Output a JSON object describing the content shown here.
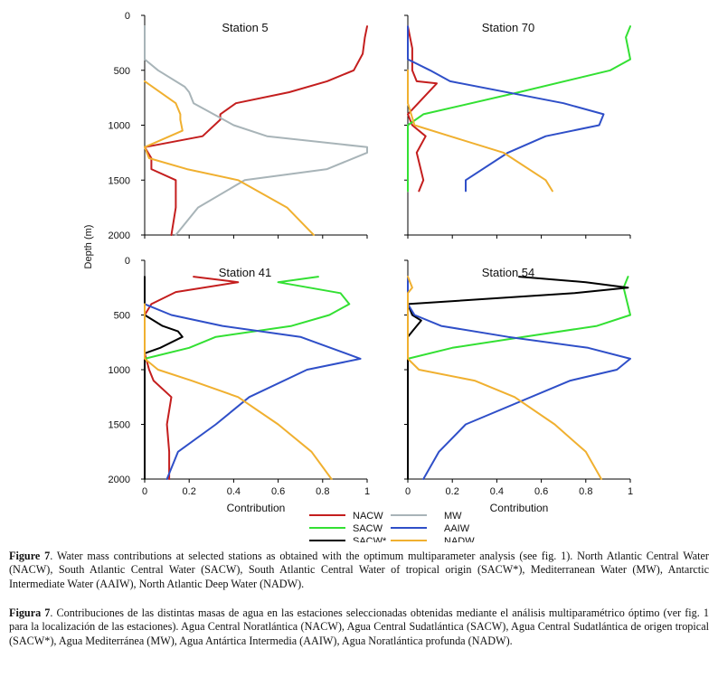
{
  "colors": {
    "NACW": "#c41e1e",
    "SACW": "#33e033",
    "SACW*": "#000000",
    "MW": "#a8b4b8",
    "AAIW": "#2f4fc8",
    "NADW": "#f0b030"
  },
  "axes": {
    "ylabel": "Depth (m)",
    "xlabel": "Contribution",
    "y_ticks": [
      "0",
      "500",
      "1000",
      "1500",
      "2000"
    ],
    "x_ticks_left": [
      "0",
      "0.2",
      "0.4",
      "0.6",
      "0.8",
      "1"
    ],
    "x_ticks_right": [
      "0",
      "0.2",
      "0.4",
      "0.6",
      "0.8",
      "1"
    ]
  },
  "legend": {
    "items": [
      {
        "key": "NACW",
        "label": "NACW"
      },
      {
        "key": "MW",
        "label": "MW"
      },
      {
        "key": "SACW",
        "label": "SACW"
      },
      {
        "key": "AAIW",
        "label": "AAIW"
      },
      {
        "key": "SACW*",
        "label": "SACW*"
      },
      {
        "key": "NADW",
        "label": "NADW"
      }
    ]
  },
  "chart_data": [
    {
      "type": "line",
      "title": "Station 5",
      "xlabel": "Contribution",
      "ylabel": "Depth (m)",
      "xlim": [
        0,
        1
      ],
      "ylim": [
        0,
        2000
      ],
      "y_inverted": true,
      "series": [
        {
          "name": "NACW",
          "points": [
            [
              1.0,
              100
            ],
            [
              0.99,
              200
            ],
            [
              0.98,
              350
            ],
            [
              0.94,
              500
            ],
            [
              0.82,
              600
            ],
            [
              0.65,
              700
            ],
            [
              0.41,
              800
            ],
            [
              0.34,
              900
            ],
            [
              0.34,
              950
            ],
            [
              0.26,
              1100
            ],
            [
              0.0,
              1200
            ],
            [
              0.03,
              1300
            ],
            [
              0.03,
              1400
            ],
            [
              0.14,
              1500
            ],
            [
              0.14,
              1750
            ],
            [
              0.12,
              2000
            ]
          ]
        },
        {
          "name": "MW",
          "points": [
            [
              0.0,
              100
            ],
            [
              0.0,
              400
            ],
            [
              0.06,
              500
            ],
            [
              0.18,
              650
            ],
            [
              0.2,
              700
            ],
            [
              0.22,
              800
            ],
            [
              0.4,
              1000
            ],
            [
              0.55,
              1100
            ],
            [
              1.0,
              1200
            ],
            [
              1.0,
              1250
            ],
            [
              0.82,
              1400
            ],
            [
              0.45,
              1500
            ],
            [
              0.24,
              1750
            ],
            [
              0.14,
              2000
            ]
          ]
        },
        {
          "name": "NADW",
          "points": [
            [
              0.0,
              600
            ],
            [
              0.14,
              800
            ],
            [
              0.16,
              900
            ],
            [
              0.16,
              950
            ],
            [
              0.17,
              1050
            ],
            [
              0.0,
              1200
            ],
            [
              0.02,
              1300
            ],
            [
              0.19,
              1400
            ],
            [
              0.42,
              1500
            ],
            [
              0.64,
              1750
            ],
            [
              0.76,
              2000
            ]
          ]
        }
      ]
    },
    {
      "type": "line",
      "title": "Station 70",
      "xlabel": "Contribution",
      "ylabel": "Depth (m)",
      "xlim": [
        0,
        1
      ],
      "ylim": [
        0,
        2000
      ],
      "y_inverted": true,
      "series": [
        {
          "name": "NACW",
          "points": [
            [
              0.0,
              100
            ],
            [
              0.02,
              300
            ],
            [
              0.02,
              500
            ],
            [
              0.04,
              600
            ],
            [
              0.13,
              620
            ],
            [
              0.07,
              750
            ],
            [
              0.0,
              900
            ],
            [
              0.02,
              1000
            ],
            [
              0.08,
              1100
            ],
            [
              0.04,
              1250
            ],
            [
              0.07,
              1500
            ],
            [
              0.05,
              1600
            ]
          ]
        },
        {
          "name": "SACW",
          "points": [
            [
              1.0,
              100
            ],
            [
              0.98,
              200
            ],
            [
              1.0,
              400
            ],
            [
              0.91,
              500
            ],
            [
              0.5,
              700
            ],
            [
              0.07,
              900
            ],
            [
              0.0,
              1000
            ],
            [
              0.0,
              1600
            ]
          ]
        },
        {
          "name": "AAIW",
          "points": [
            [
              0.0,
              100
            ],
            [
              0.0,
              400
            ],
            [
              0.1,
              500
            ],
            [
              0.19,
              600
            ],
            [
              0.7,
              800
            ],
            [
              0.88,
              900
            ],
            [
              0.86,
              1000
            ],
            [
              0.62,
              1100
            ],
            [
              0.45,
              1250
            ],
            [
              0.26,
              1500
            ],
            [
              0.26,
              1600
            ]
          ]
        },
        {
          "name": "NADW",
          "points": [
            [
              0.0,
              500
            ],
            [
              0.0,
              800
            ],
            [
              0.03,
              1000
            ],
            [
              0.19,
              1100
            ],
            [
              0.43,
              1250
            ],
            [
              0.62,
              1500
            ],
            [
              0.65,
              1600
            ]
          ]
        }
      ]
    },
    {
      "type": "line",
      "title": "Station 41",
      "xlabel": "Contribution",
      "ylabel": "Depth (m)",
      "xlim": [
        0,
        1
      ],
      "ylim": [
        0,
        2000
      ],
      "y_inverted": true,
      "series": [
        {
          "name": "NACW",
          "points": [
            [
              0.22,
              150
            ],
            [
              0.42,
              200
            ],
            [
              0.14,
              290
            ],
            [
              0.03,
              400
            ],
            [
              0.0,
              500
            ],
            [
              0.0,
              850
            ],
            [
              0.02,
              1000
            ],
            [
              0.04,
              1100
            ],
            [
              0.12,
              1250
            ],
            [
              0.1,
              1500
            ],
            [
              0.11,
              1750
            ],
            [
              0.11,
              2000
            ]
          ]
        },
        {
          "name": "SACW",
          "points": [
            [
              0.78,
              150
            ],
            [
              0.6,
              200
            ],
            [
              0.88,
              300
            ],
            [
              0.92,
              400
            ],
            [
              0.83,
              500
            ],
            [
              0.66,
              600
            ],
            [
              0.32,
              700
            ],
            [
              0.2,
              800
            ],
            [
              0.0,
              900
            ],
            [
              0.0,
              2000
            ]
          ]
        },
        {
          "name": "SACW*",
          "points": [
            [
              0.0,
              150
            ],
            [
              0.0,
              500
            ],
            [
              0.08,
              600
            ],
            [
              0.15,
              650
            ],
            [
              0.17,
              700
            ],
            [
              0.07,
              800
            ],
            [
              0.0,
              850
            ],
            [
              0.0,
              2000
            ]
          ]
        },
        {
          "name": "AAIW",
          "points": [
            [
              0.0,
              400
            ],
            [
              0.12,
              500
            ],
            [
              0.35,
              600
            ],
            [
              0.7,
              700
            ],
            [
              0.97,
              900
            ],
            [
              0.73,
              1000
            ],
            [
              0.47,
              1250
            ],
            [
              0.32,
              1500
            ],
            [
              0.15,
              1750
            ],
            [
              0.1,
              2000
            ]
          ]
        },
        {
          "name": "NADW",
          "points": [
            [
              0.0,
              400
            ],
            [
              0.0,
              900
            ],
            [
              0.06,
              1000
            ],
            [
              0.21,
              1100
            ],
            [
              0.42,
              1250
            ],
            [
              0.6,
              1500
            ],
            [
              0.75,
              1750
            ],
            [
              0.84,
              2000
            ]
          ]
        }
      ]
    },
    {
      "type": "line",
      "title": "Station 54",
      "xlabel": "Contribution",
      "ylabel": "Depth (m)",
      "xlim": [
        0,
        1
      ],
      "ylim": [
        0,
        2000
      ],
      "y_inverted": true,
      "series": [
        {
          "name": "SACW",
          "points": [
            [
              0.99,
              150
            ],
            [
              0.97,
              250
            ],
            [
              1.0,
              500
            ],
            [
              0.85,
              600
            ],
            [
              0.52,
              700
            ],
            [
              0.2,
              800
            ],
            [
              0.0,
              900
            ],
            [
              0.0,
              2000
            ]
          ]
        },
        {
          "name": "SACW*",
          "points": [
            [
              0.5,
              150
            ],
            [
              0.8,
              200
            ],
            [
              0.99,
              250
            ],
            [
              0.75,
              300
            ],
            [
              0.0,
              400
            ],
            [
              0.02,
              500
            ],
            [
              0.06,
              550
            ],
            [
              0.02,
              650
            ],
            [
              0.0,
              700
            ],
            [
              0.0,
              2000
            ]
          ]
        },
        {
          "name": "AAIW",
          "points": [
            [
              0.0,
              150
            ],
            [
              0.0,
              400
            ],
            [
              0.03,
              500
            ],
            [
              0.15,
              600
            ],
            [
              0.45,
              700
            ],
            [
              0.81,
              800
            ],
            [
              1.0,
              900
            ],
            [
              0.94,
              1000
            ],
            [
              0.73,
              1100
            ],
            [
              0.26,
              1500
            ],
            [
              0.14,
              1750
            ],
            [
              0.07,
              2000
            ]
          ]
        },
        {
          "name": "NADW",
          "points": [
            [
              0.0,
              150
            ],
            [
              0.02,
              250
            ],
            [
              0.0,
              300
            ],
            [
              0.0,
              900
            ],
            [
              0.05,
              1000
            ],
            [
              0.3,
              1100
            ],
            [
              0.48,
              1250
            ],
            [
              0.66,
              1500
            ],
            [
              0.8,
              1750
            ],
            [
              0.87,
              2000
            ]
          ]
        }
      ]
    }
  ],
  "caption": {
    "en_label": "Figure 7",
    "en_text": ". Water mass contributions at selected stations as obtained with the optimum multiparameter analysis (see fig. 1). North Atlantic Central Water (NACW), South Atlantic Central Water (SACW), South Atlantic Central Water of tropical origin (SACW*), Mediterranean Water (MW), Antarctic Intermediate Water (AAIW), North Atlantic Deep Water (NADW).",
    "es_label": "Figura 7",
    "es_text": ". Contribuciones de las distintas masas de agua en las estaciones seleccionadas obtenidas mediante el análisis multiparamétrico óptimo (ver fig. 1 para la localización de las estaciones). Agua Central Noratlántica (NACW), Agua Central Sudatlántica (SACW), Agua Central Sudatlántica de origen tropical (SACW*), Agua Mediterránea (MW), Agua Antártica Intermedia (AAIW), Agua Noratlántica profunda (NADW)."
  }
}
